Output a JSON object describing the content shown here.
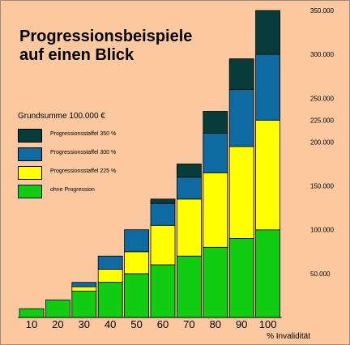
{
  "chart_data": {
    "type": "bar",
    "stacked": true,
    "title_line1": "Progressionsbeispiele",
    "title_line2": "auf einen Blick",
    "subtitle": "Grundsumme 100.000 €",
    "xlabel": "% Invalidität",
    "categories": [
      "10",
      "20",
      "30",
      "40",
      "50",
      "60",
      "70",
      "80",
      "90",
      "100"
    ],
    "ylim": [
      0,
      350000
    ],
    "y_ticks": [
      {
        "value": 50000,
        "label": "50.000"
      },
      {
        "value": 100000,
        "label": "100.000"
      },
      {
        "value": 150000,
        "label": "150.000"
      },
      {
        "value": 200000,
        "label": "200.000"
      },
      {
        "value": 225000,
        "label": "225.000"
      },
      {
        "value": 250000,
        "label": "250.000"
      },
      {
        "value": 300000,
        "label": "300.000"
      },
      {
        "value": 350000,
        "label": "350.000"
      }
    ],
    "series": [
      {
        "name": "ohne Progression",
        "color": "#11cc11",
        "values": [
          10000,
          20000,
          30000,
          40000,
          50000,
          60000,
          70000,
          80000,
          90000,
          100000
        ]
      },
      {
        "name": "Progressionsstaffel 225 %",
        "color": "#ffff00",
        "values": [
          0,
          0,
          5000,
          15000,
          25000,
          45000,
          65000,
          85000,
          105000,
          125000
        ]
      },
      {
        "name": "Progressionsstaffel 300 %",
        "color": "#0e6aa0",
        "values": [
          0,
          0,
          5000,
          15000,
          25000,
          25000,
          25000,
          45000,
          65000,
          75000
        ]
      },
      {
        "name": "Progressionsstaffel 350 %",
        "color": "#083c3a",
        "values": [
          0,
          0,
          0,
          0,
          0,
          5000,
          15000,
          25000,
          35000,
          50000
        ]
      }
    ],
    "legend_order": [
      3,
      2,
      1,
      0
    ],
    "grid": false,
    "legend_position": "left"
  }
}
